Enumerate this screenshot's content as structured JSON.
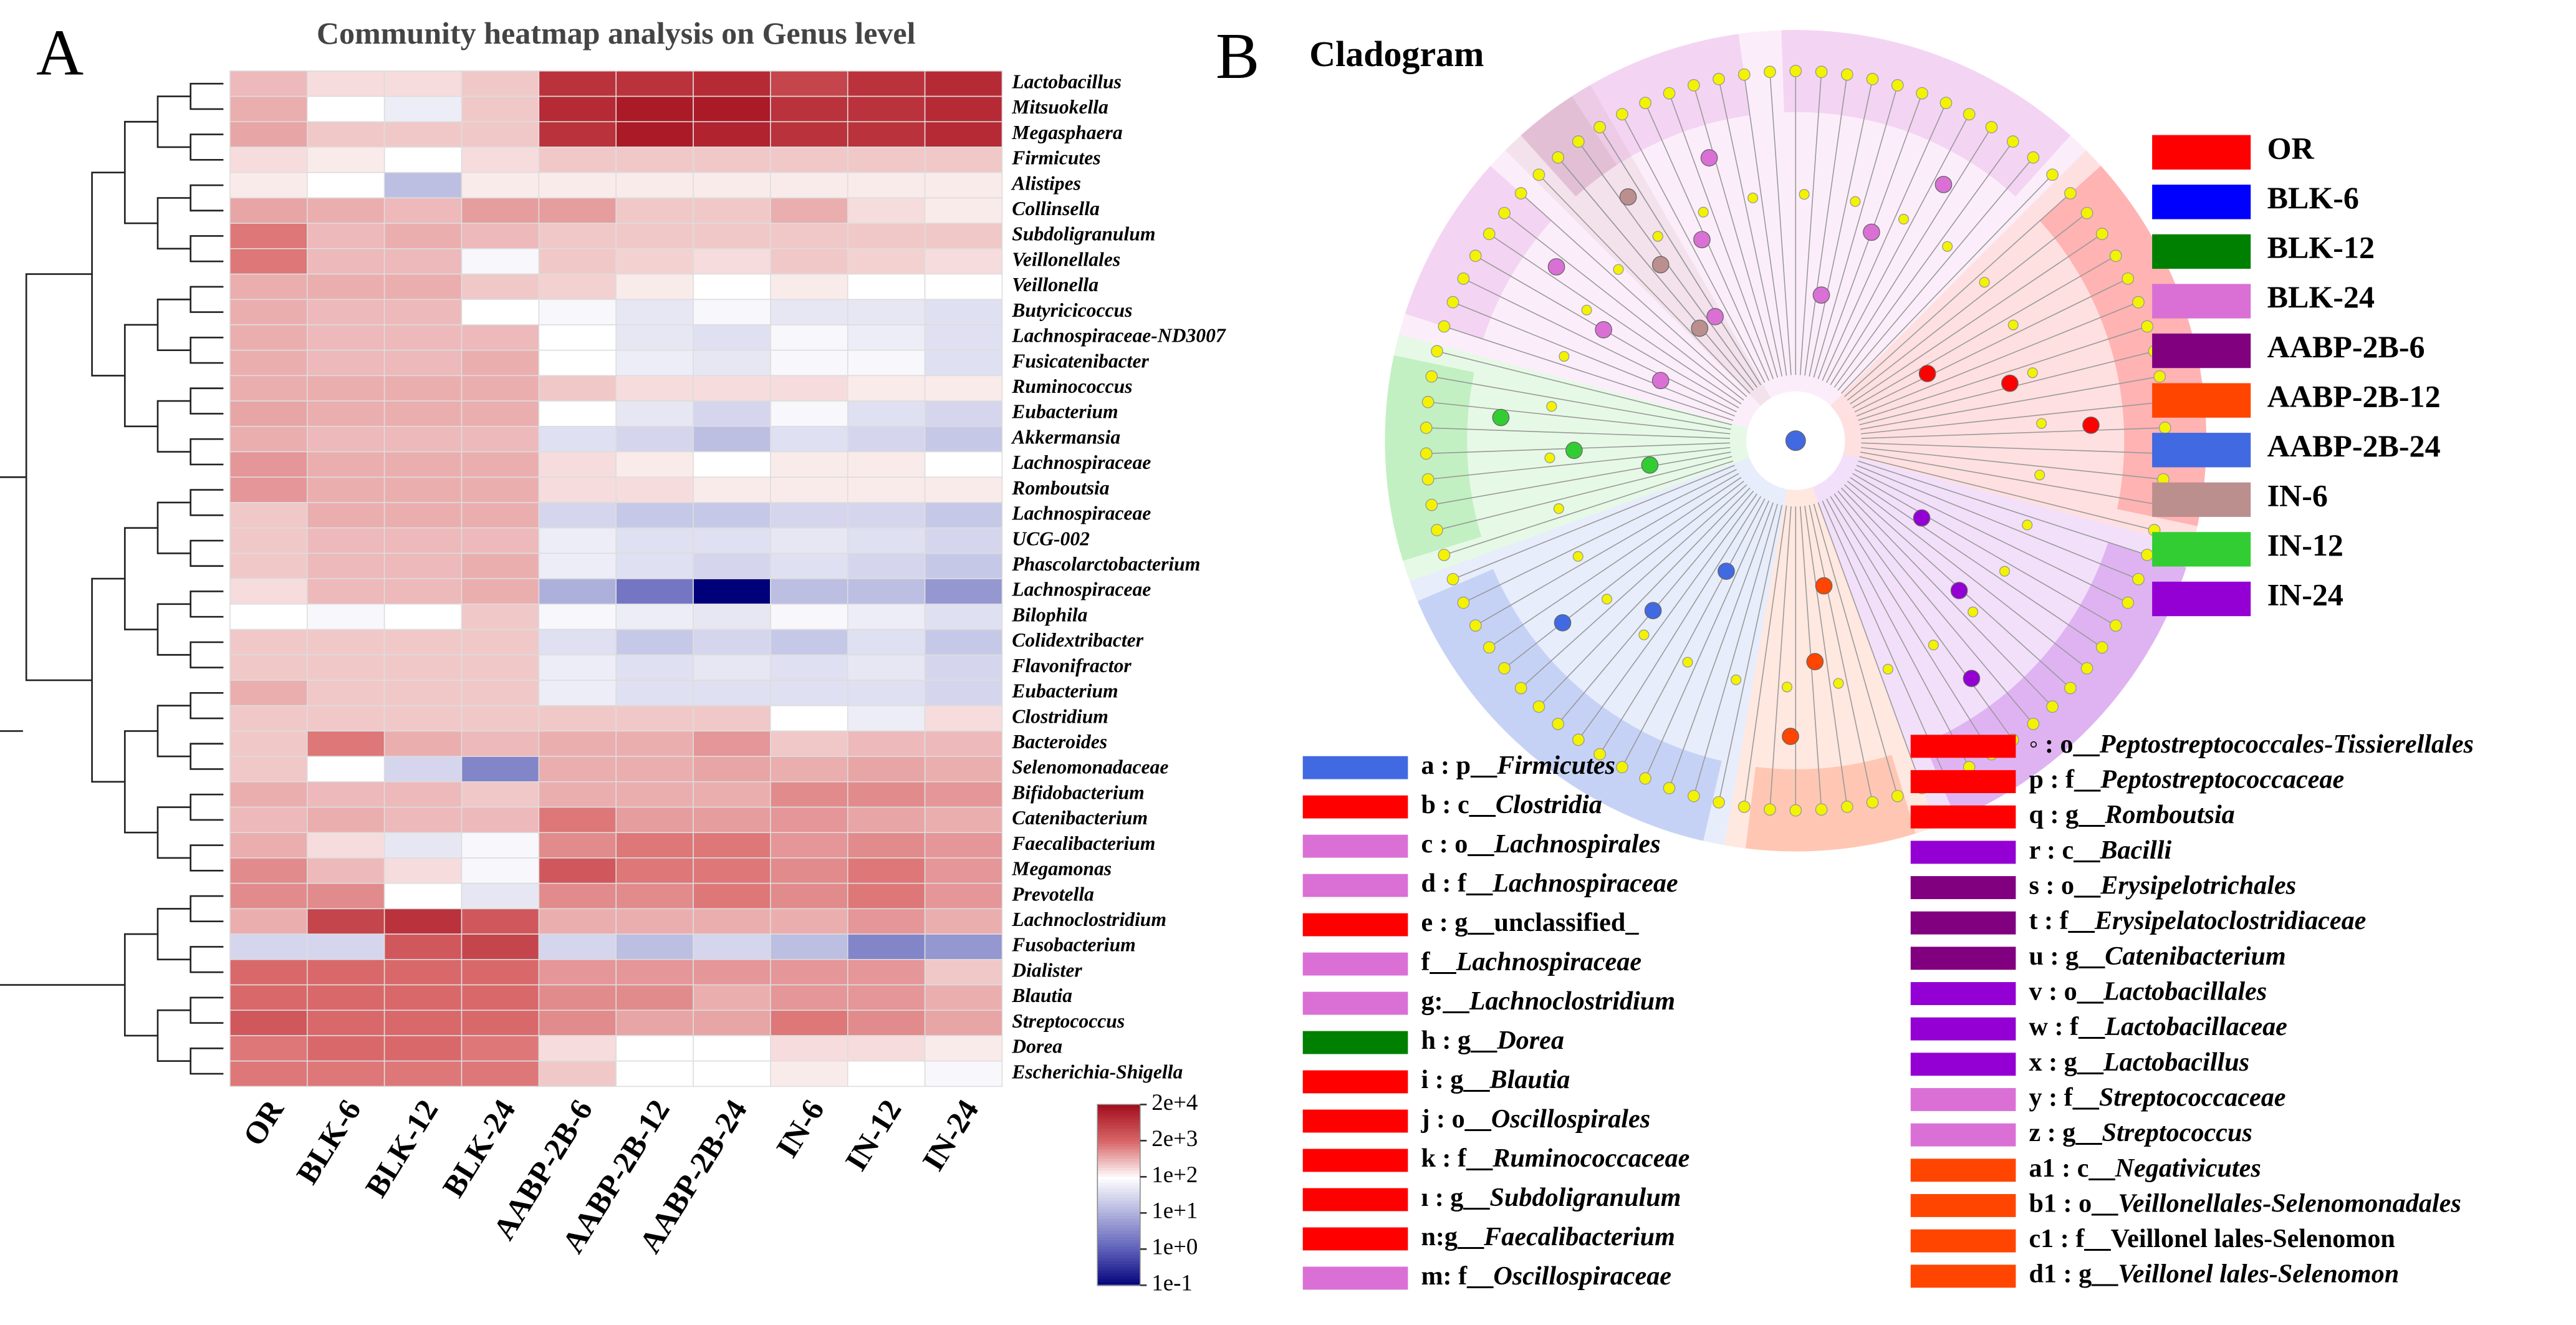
{
  "panel_labels": [
    "A",
    "B"
  ],
  "chart_data": {
    "type": "heatmap",
    "title": "Community heatmap analysis on Genus level",
    "categories": [
      "OR",
      "BLK-6",
      "BLK-12",
      "BLK-24",
      "AABP-2B-6",
      "AABP-2B-12",
      "AABP-2B-24",
      "IN-6",
      "IN-12",
      "IN-24"
    ],
    "rows": [
      "Lactobacillus",
      "Mitsuokella",
      "Megasphaera",
      "Firmicutes",
      "Alistipes",
      "Collinsella",
      "Subdoligranulum",
      "Veillonellales",
      "Veillonella",
      "Butyricicoccus",
      "Lachnospiraceae-ND3007",
      "Fusicatenibacter",
      "Ruminococcus",
      "Eubacterium",
      "Akkermansia",
      "Lachnospiraceae",
      "Romboutsia",
      "Lachnospiraceae",
      "UCG-002",
      "Phascolarctobacterium",
      "Lachnospiraceae",
      "Bilophila",
      "Colidextribacter",
      "Flavonifractor",
      "Eubacterium",
      "Clostridium",
      "Bacteroides",
      "Selenomonadaceae",
      "Bifidobacterium",
      "Catenibacterium",
      "Faecalibacterium",
      "Megamonas",
      "Prevotella",
      "Lachnoclostridium",
      "Fusobacterium",
      "Dialister",
      "Blautia",
      "Streptococcus",
      "Dorea",
      "Escherichia-Shigella"
    ],
    "values": [
      [
        400,
        200,
        200,
        300,
        8000,
        8000,
        10000,
        5000,
        8000,
        10000
      ],
      [
        500,
        100,
        60,
        300,
        10000,
        15000,
        15000,
        8000,
        8000,
        10000
      ],
      [
        600,
        300,
        300,
        300,
        8000,
        15000,
        12000,
        8000,
        8000,
        10000
      ],
      [
        200,
        150,
        100,
        200,
        300,
        300,
        300,
        300,
        300,
        300
      ],
      [
        150,
        100,
        15,
        150,
        150,
        150,
        150,
        150,
        150,
        150
      ],
      [
        600,
        500,
        400,
        700,
        700,
        300,
        300,
        500,
        200,
        150
      ],
      [
        1500,
        400,
        500,
        400,
        300,
        300,
        300,
        300,
        300,
        300
      ],
      [
        1500,
        400,
        400,
        80,
        300,
        250,
        200,
        300,
        250,
        200
      ],
      [
        500,
        500,
        500,
        300,
        250,
        150,
        100,
        150,
        100,
        100
      ],
      [
        500,
        400,
        400,
        100,
        80,
        50,
        80,
        50,
        50,
        40
      ],
      [
        500,
        400,
        400,
        400,
        100,
        50,
        40,
        80,
        60,
        40
      ],
      [
        500,
        400,
        400,
        500,
        100,
        60,
        50,
        80,
        80,
        40
      ],
      [
        500,
        500,
        500,
        500,
        300,
        200,
        200,
        200,
        150,
        150
      ],
      [
        600,
        500,
        500,
        500,
        100,
        50,
        30,
        80,
        40,
        30
      ],
      [
        500,
        400,
        400,
        400,
        40,
        30,
        15,
        40,
        30,
        20
      ],
      [
        800,
        500,
        500,
        500,
        200,
        150,
        100,
        150,
        150,
        100
      ],
      [
        800,
        500,
        500,
        500,
        200,
        200,
        150,
        150,
        150,
        150
      ],
      [
        300,
        500,
        500,
        500,
        30,
        20,
        20,
        30,
        30,
        20
      ],
      [
        300,
        400,
        400,
        400,
        60,
        40,
        40,
        50,
        40,
        30
      ],
      [
        300,
        400,
        400,
        500,
        60,
        40,
        30,
        40,
        30,
        20
      ],
      [
        200,
        400,
        400,
        500,
        10,
        2,
        0.1,
        15,
        15,
        5
      ],
      [
        100,
        80,
        100,
        300,
        80,
        60,
        50,
        80,
        60,
        40
      ],
      [
        300,
        300,
        300,
        300,
        40,
        20,
        30,
        20,
        40,
        20
      ],
      [
        300,
        300,
        300,
        300,
        60,
        40,
        50,
        40,
        50,
        30
      ],
      [
        500,
        300,
        300,
        300,
        60,
        40,
        40,
        40,
        40,
        30
      ],
      [
        300,
        300,
        300,
        300,
        300,
        300,
        300,
        100,
        60,
        200
      ],
      [
        300,
        1500,
        500,
        400,
        500,
        500,
        800,
        300,
        400,
        400
      ],
      [
        300,
        100,
        30,
        3,
        500,
        500,
        600,
        500,
        600,
        500
      ],
      [
        500,
        400,
        400,
        300,
        500,
        500,
        500,
        1000,
        1000,
        800
      ],
      [
        400,
        500,
        400,
        400,
        1500,
        700,
        700,
        800,
        600,
        500
      ],
      [
        500,
        200,
        50,
        80,
        1000,
        1500,
        1500,
        800,
        1000,
        800
      ],
      [
        1000,
        400,
        200,
        80,
        3000,
        1500,
        1500,
        1000,
        1500,
        800
      ],
      [
        1000,
        1000,
        100,
        50,
        1000,
        1000,
        1500,
        1000,
        1500,
        800
      ],
      [
        500,
        5000,
        8000,
        3000,
        500,
        500,
        500,
        500,
        800,
        500
      ],
      [
        30,
        30,
        3000,
        5000,
        30,
        15,
        30,
        15,
        3,
        5
      ],
      [
        2000,
        2000,
        2000,
        2000,
        800,
        800,
        800,
        800,
        800,
        300
      ],
      [
        2000,
        2000,
        2000,
        2000,
        1000,
        1000,
        500,
        800,
        800,
        500
      ],
      [
        3000,
        2000,
        2000,
        2000,
        1000,
        600,
        600,
        1500,
        1000,
        600
      ],
      [
        1500,
        2000,
        2000,
        1500,
        200,
        100,
        100,
        200,
        200,
        150
      ],
      [
        1500,
        1500,
        1500,
        1500,
        300,
        100,
        100,
        150,
        100,
        80
      ]
    ],
    "zticks": [
      {
        "value": 20000,
        "label": "2e+4"
      },
      {
        "value": 2000,
        "label": "2e+3"
      },
      {
        "value": 100,
        "label": "1e+2"
      },
      {
        "value": 10,
        "label": "1e+1"
      },
      {
        "value": 1,
        "label": "1e+0"
      },
      {
        "value": 0.1,
        "label": "1e-1"
      }
    ],
    "colors": [
      "#a50f1e",
      "#d9686a",
      "#ffffff",
      "#aeb0dc",
      "#5b5db8",
      "#00007a"
    ]
  },
  "cladogram": {
    "title": "Cladogram",
    "groups": [
      {
        "name": "OR",
        "color": "#ff0000"
      },
      {
        "name": "BLK-6",
        "color": "#0000ff"
      },
      {
        "name": "BLK-12",
        "color": "#008000"
      },
      {
        "name": "BLK-24",
        "color": "#da70d6"
      },
      {
        "name": "AABP-2B-6",
        "color": "#800080"
      },
      {
        "name": "AABP-2B-12",
        "color": "#ff4500"
      },
      {
        "name": "AABP-2B-24",
        "color": "#4169e1"
      },
      {
        "name": "IN-6",
        "color": "#bc8f8f"
      },
      {
        "name": "IN-12",
        "color": "#32cd32"
      },
      {
        "name": "IN-24",
        "color": "#9400d3"
      }
    ],
    "key_left": [
      {
        "color": "#4169e1",
        "key": "a : p__",
        "taxon": "Firmicutes"
      },
      {
        "color": "#ff0000",
        "key": "b : c__",
        "taxon": "Clostridia"
      },
      {
        "color": "#da70d6",
        "key": "c : o__",
        "taxon": "Lachnospirales"
      },
      {
        "color": "#da70d6",
        "key": "d : f__",
        "taxon": "Lachnospiraceae"
      },
      {
        "color": "#ff0000",
        "key": "e : g__unclassified_",
        "taxon": ""
      },
      {
        "color": "#da70d6",
        "key": "f__",
        "taxon": "Lachnospiraceae"
      },
      {
        "color": "#da70d6",
        "key": "g:__",
        "taxon": "Lachnoclostridium"
      },
      {
        "color": "#008000",
        "key": "h : g__",
        "taxon": "Dorea"
      },
      {
        "color": "#ff0000",
        "key": "i : g__",
        "taxon": "Blautia"
      },
      {
        "color": "#ff0000",
        "key": "j : o__",
        "taxon": "Oscillospirales"
      },
      {
        "color": "#ff0000",
        "key": "k : f__",
        "taxon": "Ruminococcaceae"
      },
      {
        "color": "#ff0000",
        "key": "ı : g__",
        "taxon": "Subdoligranulum"
      },
      {
        "color": "#ff0000",
        "key": "n:g__",
        "taxon": "Faecalibacterium"
      },
      {
        "color": "#da70d6",
        "key": "m: f__",
        "taxon": "Oscillospiraceae"
      }
    ],
    "key_right": [
      {
        "color": "#ff0000",
        "key": "◦ : o__",
        "taxon": "Peptostreptococcales-Tissierellales"
      },
      {
        "color": "#ff0000",
        "key": "p : f__",
        "taxon": "Peptostreptococcaceae"
      },
      {
        "color": "#ff0000",
        "key": "q : g__",
        "taxon": "Romboutsia"
      },
      {
        "color": "#9400d3",
        "key": "r : c__",
        "taxon": "Bacilli"
      },
      {
        "color": "#800080",
        "key": "s : o__",
        "taxon": "Erysipelotrichales"
      },
      {
        "color": "#800080",
        "key": "t : f__",
        "taxon": "Erysipelatoclostridiaceae"
      },
      {
        "color": "#800080",
        "key": "u : g__",
        "taxon": "Catenibacterium"
      },
      {
        "color": "#9400d3",
        "key": "v : o__",
        "taxon": "Lactobacillales"
      },
      {
        "color": "#9400d3",
        "key": "w : f__",
        "taxon": "Lactobacillaceae"
      },
      {
        "color": "#9400d3",
        "key": "x : g__",
        "taxon": "Lactobacillus"
      },
      {
        "color": "#da70d6",
        "key": "y : f__",
        "taxon": "Streptococcaceae"
      },
      {
        "color": "#da70d6",
        "key": "z : g__",
        "taxon": "Streptococcus"
      },
      {
        "color": "#ff4500",
        "key": "a1 : c__",
        "taxon": "Negativicutes"
      },
      {
        "color": "#ff4500",
        "key": "b1 : o__",
        "taxon": "Veillonellales-Selenomonadales"
      },
      {
        "color": "#ff4500",
        "key": "c1 : f__Veillonel lales-Selenomon",
        "taxon": ""
      },
      {
        "color": "#ff4500",
        "key": "d1 : g__",
        "taxon": "Veillonel lales-Selenomon"
      }
    ]
  }
}
